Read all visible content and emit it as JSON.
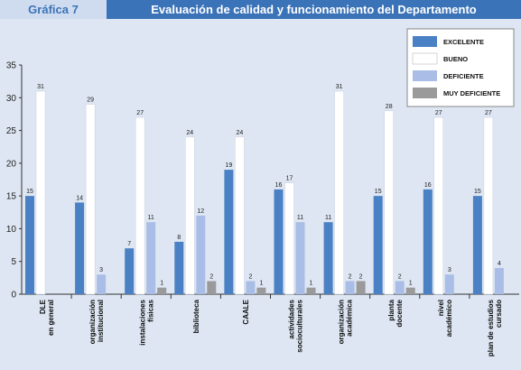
{
  "header": {
    "figure_number": "Gráfica 7",
    "title": "Evaluación de calidad y funcionamiento del Departamento"
  },
  "colors": {
    "background": "#dde6f2",
    "header_left_bg": "#cfdcef",
    "header_left_text": "#3b73b8",
    "header_right_bg": "#3b73b8"
  },
  "chart_data": {
    "type": "bar",
    "title": "Evaluación de calidad y funcionamiento del Departamento",
    "ylim": [
      0,
      35
    ],
    "yticks": [
      0,
      5,
      10,
      15,
      20,
      25,
      30,
      35
    ],
    "grid": false,
    "legend_position": "top-right",
    "categories": [
      [
        "DLE",
        "en general"
      ],
      [
        "organización",
        "institucional"
      ],
      [
        "instalaciones",
        "físicas"
      ],
      [
        "biblioteca"
      ],
      [
        "CAALE"
      ],
      [
        "actividades",
        "socioculturales"
      ],
      [
        "organización",
        "académica"
      ],
      [
        "planta",
        "docente"
      ],
      [
        "nivel",
        "académico"
      ],
      [
        "plan de estudios",
        "cursado"
      ]
    ],
    "series": [
      {
        "name": "EXCELENTE",
        "color": "#4a80c4",
        "values": [
          15,
          14,
          7,
          8,
          19,
          16,
          11,
          15,
          16,
          15
        ]
      },
      {
        "name": "BUENO",
        "color": "#ffffff",
        "values": [
          31,
          29,
          27,
          24,
          24,
          17,
          31,
          28,
          27,
          27
        ]
      },
      {
        "name": "DEFICIENTE",
        "color": "#a9bde6",
        "values": [
          null,
          3,
          11,
          12,
          2,
          11,
          2,
          2,
          3,
          4
        ]
      },
      {
        "name": "MUY DEFICIENTE",
        "color": "#9a9a9a",
        "values": [
          null,
          null,
          1,
          2,
          1,
          1,
          2,
          1,
          null,
          null
        ]
      }
    ]
  }
}
